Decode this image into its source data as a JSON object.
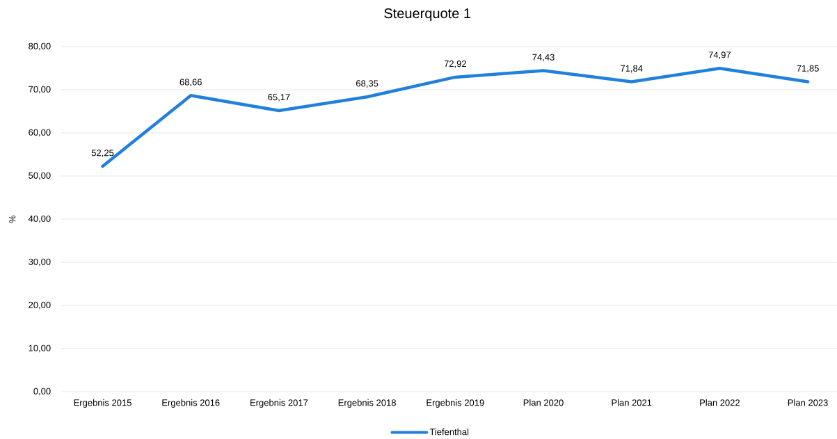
{
  "chart_data": {
    "type": "line",
    "title": "Steuerquote 1",
    "ylabel": "%",
    "categories": [
      "Ergebnis 2015",
      "Ergebnis 2016",
      "Ergebnis 2017",
      "Ergebnis 2018",
      "Ergebnis 2019",
      "Plan 2020",
      "Plan 2021",
      "Plan 2022",
      "Plan 2023"
    ],
    "series": [
      {
        "name": "Tiefenthal",
        "color": "#2180dc",
        "values": [
          52.25,
          68.66,
          65.17,
          68.35,
          72.92,
          74.43,
          71.84,
          74.97,
          71.85
        ],
        "value_labels": [
          "52,25",
          "68,66",
          "65,17",
          "68,35",
          "72,92",
          "74,43",
          "71,84",
          "74,97",
          "71,85"
        ]
      }
    ],
    "ylim": [
      0,
      80
    ],
    "yticks": [
      {
        "value": 0,
        "label": "0,00"
      },
      {
        "value": 10,
        "label": "10,00"
      },
      {
        "value": 20,
        "label": "20,00"
      },
      {
        "value": 30,
        "label": "30,00"
      },
      {
        "value": 40,
        "label": "40,00"
      },
      {
        "value": 50,
        "label": "50,00"
      },
      {
        "value": 60,
        "label": "60,00"
      },
      {
        "value": 70,
        "label": "70,00"
      },
      {
        "value": 80,
        "label": "80,00"
      }
    ],
    "grid": "y",
    "legend": "bottom"
  }
}
